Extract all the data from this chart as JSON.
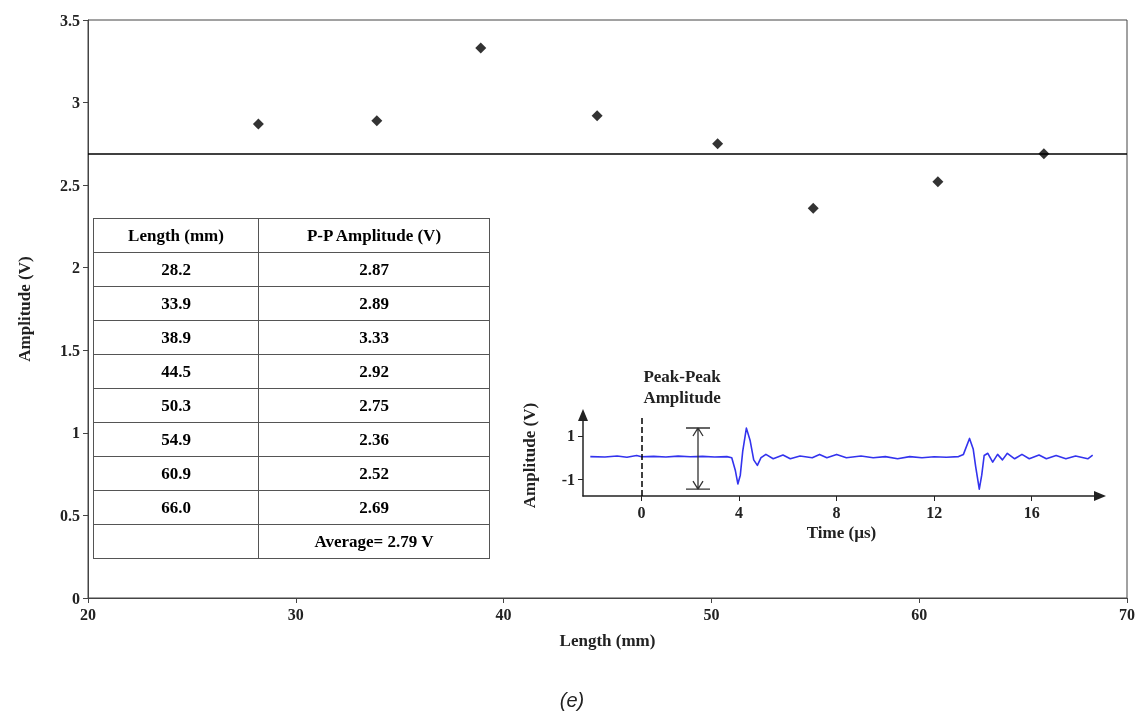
{
  "chart_data": [
    {
      "type": "scatter",
      "xlabel": "Length (mm)",
      "ylabel": "Amplitude (V)",
      "x": [
        28.2,
        33.9,
        38.9,
        44.5,
        50.3,
        54.9,
        60.9,
        66.0
      ],
      "values": [
        2.87,
        2.89,
        3.33,
        2.92,
        2.75,
        2.36,
        2.52,
        2.69
      ],
      "color": "#000000",
      "marker": "diamond",
      "xlim": [
        20,
        70
      ],
      "xticks": [
        20,
        30,
        40,
        50,
        60,
        70
      ],
      "ylim": [
        0,
        3.5
      ],
      "yticks": [
        0,
        0.5,
        1,
        1.5,
        2,
        2.5,
        3,
        3.5
      ],
      "ref_lines": [
        {
          "axis": "y",
          "value": 2.69,
          "color": "#000000",
          "line_style": "solid"
        }
      ],
      "annotations": [
        "Length (mm)",
        "P-P Amplitude (V)",
        "28.2",
        "2.87",
        "33.9",
        "2.89",
        "38.9",
        "3.33",
        "44.5",
        "2.92",
        "50.3",
        "2.75",
        "54.9",
        "2.36",
        "60.9",
        "2.52",
        "66.0",
        "2.69",
        "Average= 2.79 V",
        "(e)"
      ]
    },
    {
      "type": "line",
      "xlabel": "Time (µs)",
      "ylabel": "Amplitude (V)",
      "color": "#3333ee",
      "marker": "none",
      "line_style": "solid",
      "x": [
        -2.1,
        -1.5,
        -1.0,
        -0.6,
        -0.2,
        0,
        0.5,
        1,
        1.5,
        2,
        2.5,
        3,
        3.5,
        3.7,
        3.85,
        3.95,
        4.05,
        4.15,
        4.3,
        4.45,
        4.6,
        4.75,
        4.9,
        5.1,
        5.4,
        5.8,
        6.1,
        6.5,
        7,
        7.3,
        7.6,
        8,
        8.4,
        9,
        9.5,
        10,
        10.5,
        11,
        11.5,
        12,
        12.5,
        13,
        13.2,
        13.45,
        13.6,
        13.7,
        13.85,
        13.95,
        14.05,
        14.2,
        14.4,
        14.6,
        14.8,
        15,
        15.3,
        15.6,
        15.9,
        16.3,
        16.6,
        17,
        17.4,
        17.8,
        18.3,
        18.5
      ],
      "values": [
        0.05,
        0.03,
        0.08,
        0.02,
        0.1,
        0.04,
        0.06,
        0.03,
        0.07,
        0.04,
        0.06,
        0.03,
        0.05,
        0.0,
        -0.6,
        -1.2,
        -0.8,
        0.3,
        1.35,
        0.8,
        -0.1,
        -0.35,
        0.0,
        0.15,
        -0.05,
        0.12,
        -0.05,
        0.08,
        0.0,
        0.15,
        0.0,
        0.15,
        0.0,
        0.08,
        0.0,
        0.05,
        -0.05,
        0.05,
        0.0,
        0.04,
        0.02,
        0.05,
        0.15,
        0.88,
        0.4,
        -0.4,
        -1.44,
        -0.8,
        0.1,
        0.2,
        -0.2,
        0.15,
        -0.1,
        0.2,
        -0.05,
        0.15,
        -0.05,
        0.12,
        -0.05,
        0.1,
        -0.05,
        0.08,
        -0.05,
        0.12
      ],
      "xlim": [
        -2.4,
        18.8
      ],
      "xticks": [
        0,
        4,
        8,
        12,
        16
      ],
      "ylim": [
        -1.75,
        1.95
      ],
      "yticks": [
        -1,
        1
      ],
      "ref_lines": [
        {
          "axis": "x",
          "value": 0,
          "color": "#000000",
          "line_style": "dashed"
        }
      ],
      "annotations": [
        "Peak-Peak Amplitude"
      ]
    }
  ]
}
